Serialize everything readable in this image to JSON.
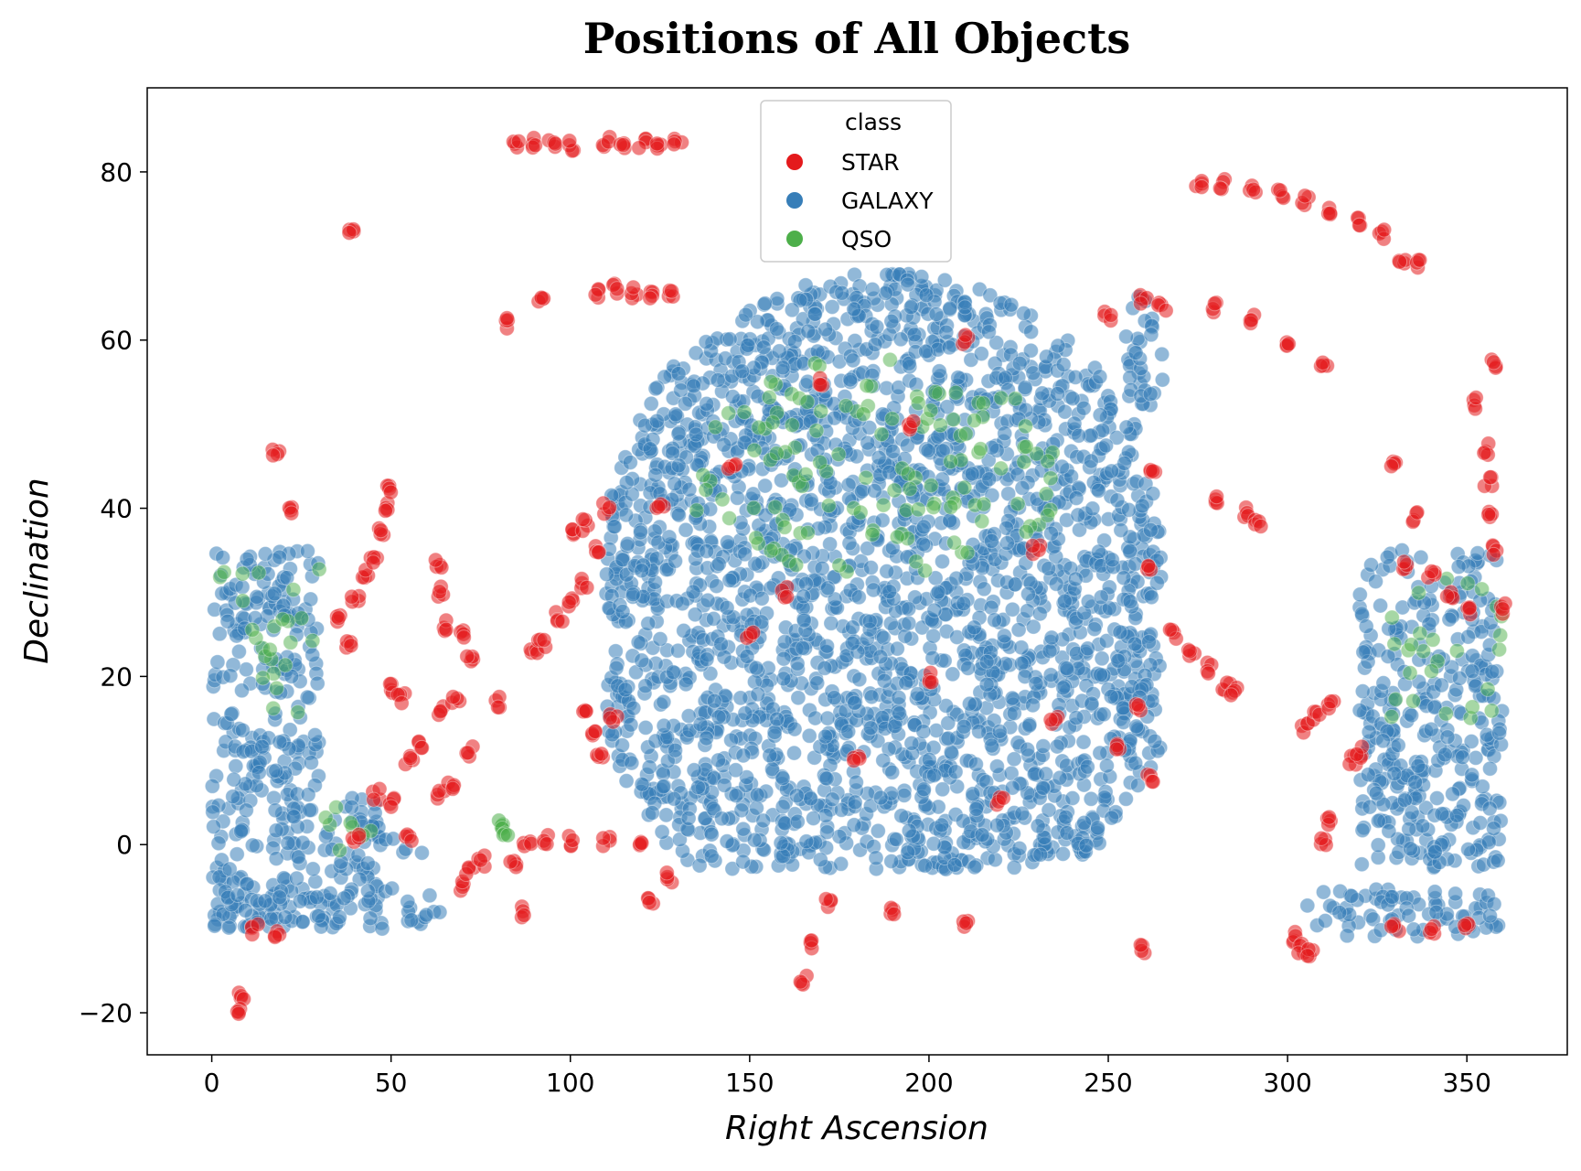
{
  "chart_data": {
    "type": "scatter",
    "title": "Positions of All Objects",
    "xlabel": "Right Ascension",
    "ylabel": "Declination",
    "xlim": [
      -18,
      378
    ],
    "ylim": [
      -25,
      90
    ],
    "xticks": [
      0,
      50,
      100,
      150,
      200,
      250,
      300,
      350
    ],
    "yticks": [
      -20,
      0,
      20,
      40,
      60,
      80
    ],
    "xtick_labels": [
      "0",
      "50",
      "100",
      "150",
      "200",
      "250",
      "300",
      "350"
    ],
    "ytick_labels": [
      "−20",
      "0",
      "20",
      "40",
      "60",
      "80"
    ],
    "grid": false,
    "legend": {
      "title": "class",
      "placement": "upper center",
      "entries": [
        "STAR",
        "GALAXY",
        "QSO"
      ]
    },
    "colors": {
      "STAR": "#e41a1c",
      "GALAXY": "#377eb8",
      "QSO": "#4daf4a"
    },
    "series": [
      {
        "name": "STAR",
        "points": [
          [
            85,
            83
          ],
          [
            90,
            83.6
          ],
          [
            95,
            83.4
          ],
          [
            100,
            83.2
          ],
          [
            110,
            83.5
          ],
          [
            115,
            83.2
          ],
          [
            120,
            83.4
          ],
          [
            125,
            83.2
          ],
          [
            130,
            83.4
          ],
          [
            82,
            62
          ],
          [
            92,
            64.5
          ],
          [
            108,
            65.5
          ],
          [
            113,
            66
          ],
          [
            118,
            65.6
          ],
          [
            123,
            65.5
          ],
          [
            128,
            65.4
          ],
          [
            18,
            46.5
          ],
          [
            22,
            39.5
          ],
          [
            39,
            72.5
          ],
          [
            35,
            27
          ],
          [
            38,
            24
          ],
          [
            40,
            29
          ],
          [
            43,
            32
          ],
          [
            45,
            34
          ],
          [
            47,
            37
          ],
          [
            49,
            40
          ],
          [
            50,
            42
          ],
          [
            50,
            18.5
          ],
          [
            53,
            17.5
          ],
          [
            8,
            -18
          ],
          [
            7,
            -19.5
          ],
          [
            12,
            -10
          ],
          [
            18,
            -11
          ],
          [
            63,
            33.5
          ],
          [
            64,
            30
          ],
          [
            65,
            26
          ],
          [
            70,
            25
          ],
          [
            72,
            22
          ],
          [
            64,
            16
          ],
          [
            68,
            17
          ],
          [
            72,
            11
          ],
          [
            55,
            10
          ],
          [
            58,
            12
          ],
          [
            64,
            6
          ],
          [
            67,
            7
          ],
          [
            46,
            6
          ],
          [
            50,
            5
          ],
          [
            55,
            0.5
          ],
          [
            40,
            0.5
          ],
          [
            70,
            -5
          ],
          [
            72,
            -3
          ],
          [
            75,
            -2
          ],
          [
            84,
            -2
          ],
          [
            86,
            -8
          ],
          [
            80,
            17
          ],
          [
            90,
            23.5
          ],
          [
            92,
            24
          ],
          [
            97,
            27
          ],
          [
            100,
            29
          ],
          [
            104,
            31
          ],
          [
            108,
            35
          ],
          [
            101,
            37
          ],
          [
            104,
            38
          ],
          [
            110,
            40
          ],
          [
            104,
            16
          ],
          [
            106,
            13
          ],
          [
            108,
            11
          ],
          [
            112,
            15
          ],
          [
            88,
            0.5
          ],
          [
            93,
            0.5
          ],
          [
            100,
            0.5
          ],
          [
            110,
            0.5
          ],
          [
            120,
            0.5
          ],
          [
            122,
            -7
          ],
          [
            128,
            -4
          ],
          [
            172,
            -7
          ],
          [
            168,
            -12
          ],
          [
            165,
            -16
          ],
          [
            190,
            -8
          ],
          [
            210,
            -9.5
          ],
          [
            260,
            -12.5
          ],
          [
            250,
            63
          ],
          [
            260,
            65
          ],
          [
            265,
            64
          ],
          [
            262,
            44
          ],
          [
            262,
            33
          ],
          [
            262,
            8
          ],
          [
            253,
            12
          ],
          [
            258,
            16
          ],
          [
            268,
            25
          ],
          [
            273,
            23
          ],
          [
            278,
            21
          ],
          [
            283,
            19
          ],
          [
            285,
            18
          ],
          [
            275,
            78.5
          ],
          [
            282,
            78.5
          ],
          [
            290,
            78
          ],
          [
            298,
            77.5
          ],
          [
            305,
            76.5
          ],
          [
            312,
            75.5
          ],
          [
            320,
            74
          ],
          [
            326,
            72.5
          ],
          [
            332,
            69.5
          ],
          [
            336,
            69
          ],
          [
            280,
            64
          ],
          [
            290,
            62.5
          ],
          [
            300,
            60
          ],
          [
            310,
            57
          ],
          [
            280,
            41
          ],
          [
            288,
            39.5
          ],
          [
            292,
            38
          ],
          [
            330,
            45
          ],
          [
            336,
            39
          ],
          [
            352,
            52.5
          ],
          [
            355,
            47
          ],
          [
            356,
            43
          ],
          [
            357,
            39
          ],
          [
            358,
            35
          ],
          [
            358,
            57
          ],
          [
            305,
            14
          ],
          [
            308,
            15.5
          ],
          [
            312,
            16.5
          ],
          [
            302,
            -11
          ],
          [
            304,
            -12.5
          ],
          [
            306,
            -13
          ],
          [
            318,
            10
          ],
          [
            320,
            11
          ],
          [
            312,
            3
          ],
          [
            310,
            0.5
          ],
          [
            333,
            33
          ],
          [
            340,
            32
          ],
          [
            345,
            30
          ],
          [
            350,
            28
          ],
          [
            330,
            -10
          ],
          [
            340,
            -10
          ],
          [
            350,
            -10
          ],
          [
            360,
            28
          ],
          [
            180,
            10
          ],
          [
            200,
            20
          ],
          [
            160,
            30
          ],
          [
            220,
            5
          ],
          [
            145,
            45
          ],
          [
            230,
            35
          ],
          [
            170,
            55
          ],
          [
            125,
            40
          ],
          [
            235,
            15
          ],
          [
            195,
            50
          ],
          [
            150,
            25
          ],
          [
            210,
            60
          ]
        ]
      },
      {
        "name": "GALAXY",
        "regions": [
          {
            "shape": "rect",
            "x": [
              0,
              30
            ],
            "y": [
              -10,
              35
            ]
          },
          {
            "shape": "rect",
            "x": [
              30,
              47
            ],
            "y": [
              -8,
              6
            ]
          },
          {
            "shape": "rect",
            "x": [
              47,
              60
            ],
            "y": [
              -1,
              1
            ]
          },
          {
            "shape": "band",
            "x": [
              0,
              65
            ],
            "y": [
              -10,
              -5
            ]
          },
          {
            "shape": "blob",
            "x": [
              110,
              265
            ],
            "y": [
              -3,
              68
            ]
          },
          {
            "shape": "rect",
            "x": [
              240,
              252
            ],
            "y": [
              -1,
              1
            ]
          },
          {
            "shape": "rect",
            "x": [
              255,
              266
            ],
            "y": [
              52,
              66
            ]
          },
          {
            "shape": "rect",
            "x": [
              320,
              360
            ],
            "y": [
              -3,
              35
            ]
          },
          {
            "shape": "band",
            "x": [
              305,
              360
            ],
            "y": [
              -11,
              -5
            ]
          }
        ]
      },
      {
        "name": "QSO",
        "regions": [
          {
            "shape": "rect",
            "x": [
              2,
              30
            ],
            "y": [
              15,
              33
            ]
          },
          {
            "shape": "rect",
            "x": [
              30,
              45
            ],
            "y": [
              -5,
              5
            ]
          },
          {
            "shape": "blob",
            "x": [
              135,
              235
            ],
            "y": [
              32,
              58
            ]
          },
          {
            "shape": "rect",
            "x": [
              328,
              360
            ],
            "y": [
              15,
              32
            ]
          }
        ],
        "points": [
          [
            81,
            2.5
          ],
          [
            82,
            1.8
          ]
        ]
      }
    ]
  }
}
